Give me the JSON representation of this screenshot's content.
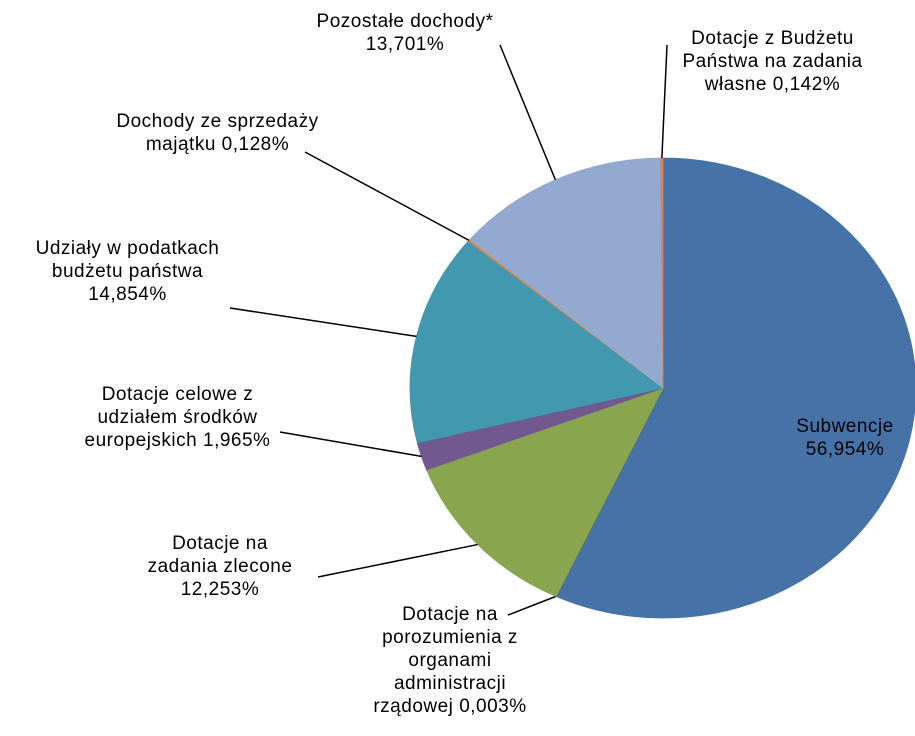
{
  "chart_data": {
    "type": "pie",
    "categories": [
      "Subwencje",
      "Dotacje na porozumienia z organami administracji rządowej",
      "Dotacje na zadania zlecone",
      "Dotacje celowe z udziałem środków europejskich",
      "Udziały w podatkach budżetu państwa",
      "Dochody ze sprzedaży majątku",
      "Pozostałe dochody*",
      "Dotacje z Budżetu Państwa na zadania własne"
    ],
    "values": [
      56.954,
      0.003,
      12.253,
      1.965,
      14.854,
      0.128,
      13.701,
      0.142
    ],
    "value_labels": [
      "56,954%",
      "0,003%",
      "12,253%",
      "1,965%",
      "14,854%",
      "0,128%",
      "13,701%",
      "0,142%"
    ],
    "colors": [
      "#4672a8",
      "#aa4643",
      "#89a54e",
      "#71588f",
      "#4198af",
      "#db843d",
      "#93a9cf",
      "#e0804a"
    ]
  }
}
